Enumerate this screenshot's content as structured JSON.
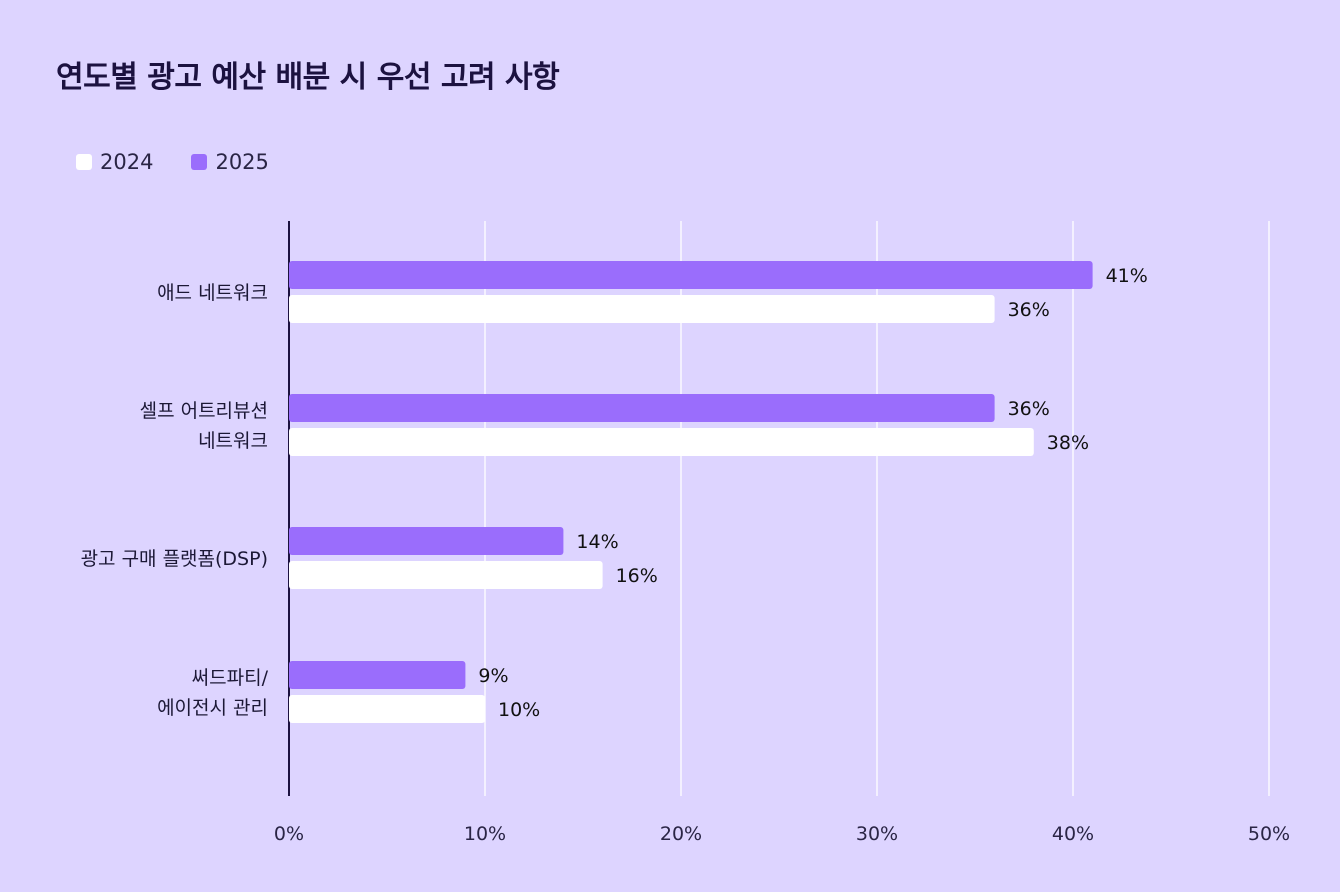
{
  "chart_data": {
    "type": "bar",
    "orientation": "horizontal",
    "title": "연도별 광고 예산 배분 시 우선 고려 사항",
    "categories": [
      [
        "애드 네트워크"
      ],
      [
        "셀프 어트리뷰션",
        "네트워크"
      ],
      [
        "광고 구매 플랫폼(DSP)"
      ],
      [
        "써드파티/",
        "에이전시 관리"
      ]
    ],
    "series": [
      {
        "name": "2025",
        "color": "#9a6dfc",
        "values": [
          41,
          36,
          14,
          9
        ],
        "labels": [
          "41%",
          "36%",
          "14%",
          "9%"
        ]
      },
      {
        "name": "2024",
        "color": "#ffffff",
        "values": [
          36,
          38,
          16,
          10
        ],
        "labels": [
          "36%",
          "38%",
          "16%",
          "10%"
        ]
      }
    ],
    "xlim": [
      0,
      50
    ],
    "xticks": [
      "0%",
      "10%",
      "20%",
      "30%",
      "40%",
      "50%"
    ],
    "grid": true,
    "legend_position": "top-left"
  },
  "legend": {
    "items": [
      {
        "label": "2024",
        "color": "#ffffff"
      },
      {
        "label": "2025",
        "color": "#9a6dfc"
      }
    ]
  },
  "colors": {
    "background": "#ddd4ff",
    "gridline": "#ffffff",
    "axis": "#1c1240"
  }
}
